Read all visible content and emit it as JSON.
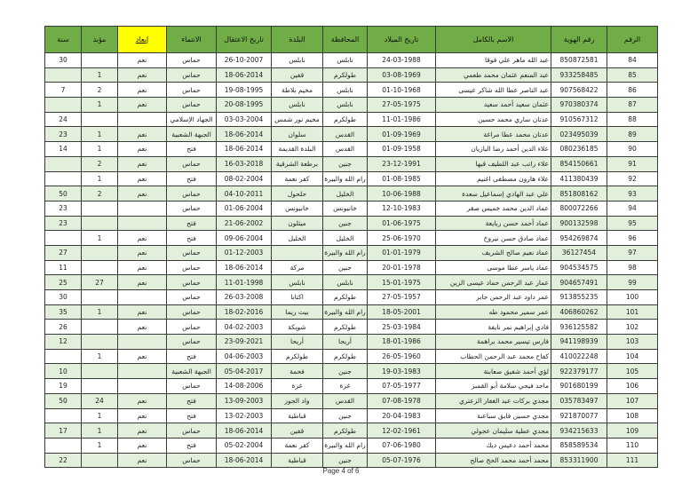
{
  "colors": {
    "header": "#70ad47",
    "highlight": "#ffff00",
    "alt_row": "#e2efda"
  },
  "headers": [
    "الرقم",
    "رقم الهوية",
    "الاسم بالكامل",
    "تاريخ الميلاد",
    "المحافظة",
    "البلدة",
    "تاريخ الاعتقال",
    "الانتماء",
    "إبعاد",
    "مؤبد",
    "سنة"
  ],
  "rows": [
    [
      "84",
      "850872581",
      "عبد الله ماهر علي قوقا",
      "24-03-1988",
      "نابلس",
      "نابلس",
      "26-10-2007",
      "حماس",
      "نعم",
      "",
      "30"
    ],
    [
      "85",
      "933258485",
      "عبد المنعم عثمان محمد طعمي",
      "03-08-1969",
      "طولكرم",
      "قفين",
      "18-06-2014",
      "حماس",
      "نعم",
      "1",
      ""
    ],
    [
      "86",
      "907568422",
      "عبد الناصر عطا الله شاكر عيسى",
      "01-10-1968",
      "نابلس",
      "مخيم بلاطة",
      "19-08-1995",
      "حماس",
      "نعم",
      "2",
      "7"
    ],
    [
      "87",
      "970380374",
      "عثمان سعيد أحمد سعيد",
      "27-05-1975",
      "نابلس",
      "نابلس",
      "20-08-1995",
      "حماس",
      "نعم",
      "1",
      ""
    ],
    [
      "88",
      "910567312",
      "عدنان ساري محمد حسين",
      "11-01-1986",
      "طولكرم",
      "مخيم نور شمس",
      "03-03-2004",
      "الجهاد الإسلامي",
      "",
      "",
      "24"
    ],
    [
      "89",
      "023495039",
      "عدنان محمد عطا مراغة",
      "01-09-1969",
      "القدس",
      "سلوان",
      "18-06-2014",
      "الجبهة الشعبية",
      "نعم",
      "1",
      "23"
    ],
    [
      "90",
      "080236185",
      "علاء الدين أحمد رضا البازيان",
      "01-09-1958",
      "القدس",
      "البلدة القديمة",
      "18-06-2014",
      "فتح",
      "نعم",
      "1",
      "14"
    ],
    [
      "91",
      "854150661",
      "علاء راتب عبد اللطيف قبها",
      "23-12-1991",
      "جنين",
      "برطعة الشرقية",
      "16-03-2018",
      "حماس",
      "نعم",
      "2",
      ""
    ],
    [
      "92",
      "411380439",
      "علاء هارون مصطفى اغنيم",
      "01-08-1985",
      "رام الله والبيرة",
      "كفر نعمة",
      "08-02-2004",
      "فتح",
      "نعم",
      "1",
      ""
    ],
    [
      "93",
      "851808162",
      "علي عبد الهادي إسماعيل سعدة",
      "10-06-1988",
      "الخليل",
      "حلحول",
      "04-10-2011",
      "حماس",
      "نعم",
      "2",
      "50"
    ],
    [
      "94",
      "800072266",
      "عماد الدين محمد خميس صقر",
      "12-10-1983",
      "خانيونس",
      "خانيونس",
      "01-06-2004",
      "حماس",
      "",
      "",
      "23"
    ],
    [
      "95",
      "900132598",
      "عماد أحمد حسن ربايعة",
      "01-06-1975",
      "جنين",
      "ميثلون",
      "21-06-2002",
      "فتح",
      "",
      "",
      "23"
    ],
    [
      "96",
      "954269874",
      "عماد صادق حسن نيروخ",
      "25-06-1970",
      "الخليل",
      "الخليل",
      "09-06-2004",
      "فتح",
      "نعم",
      "1",
      ""
    ],
    [
      "97",
      "36127454",
      "عماد نعيم صالح الشريف",
      "01-01-1979",
      "رام الله والبيرة",
      "",
      "01-12-2003",
      "حماس",
      "نعم",
      "",
      "27"
    ],
    [
      "98",
      "904534575",
      "عماد ياسر عطا موسى",
      "20-01-1978",
      "جنين",
      "مركة",
      "18-06-2014",
      "حماس",
      "نعم",
      "",
      "11"
    ],
    [
      "99",
      "904657491",
      "عمار عبد الرحمن حماد عيسى الزين",
      "15-01-1975",
      "نابلس",
      "نابلس",
      "11-01-1998",
      "حماس",
      "نعم",
      "27",
      "25"
    ],
    [
      "100",
      "913855235",
      "عمر داود عبد الرحمن جابر",
      "27-05-1957",
      "طولكرم",
      "اكتابا",
      "26-03-2008",
      "حماس",
      "",
      "",
      "30"
    ],
    [
      "101",
      "406860262",
      "عمر سمير محمود طه",
      "18-05-2001",
      "رام الله والبيرة",
      "بيت ريما",
      "18-02-2016",
      "حماس",
      "نعم",
      "1",
      "35"
    ],
    [
      "102",
      "936125582",
      "فادي إبراهيم نمر نايفة",
      "25-03-1984",
      "طولكرم",
      "شويكة",
      "04-02-2003",
      "حماس",
      "نعم",
      "",
      "26"
    ],
    [
      "103",
      "941198939",
      "فارس تيسير محمد براهمة",
      "18-01-1986",
      "أريحا",
      "أريحا",
      "23-09-2021",
      "حماس",
      "",
      "",
      "12"
    ],
    [
      "104",
      "410022248",
      "كفاح محمد عبد الرحمن الحطاب",
      "26-05-1960",
      "طولكرم",
      "طولكرم",
      "04-06-2003",
      "فتح",
      "نعم",
      "1",
      ""
    ],
    [
      "105",
      "922379177",
      "لؤي أحمد شفيق صعابنة",
      "19-03-1983",
      "جنين",
      "فحمة",
      "05-04-2017",
      "الجبهة الشعبية",
      "",
      "",
      "10"
    ],
    [
      "106",
      "901680199",
      "ماجد فيحي سلامة أبو القمبز",
      "07-05-1977",
      "غزة",
      "غزة",
      "14-08-2006",
      "حماس",
      "",
      "",
      "19"
    ],
    [
      "107",
      "035783497",
      "مجدي بركات عبد الغفار الزعتري",
      "07-08-1978",
      "القدس",
      "واد الجوز",
      "13-09-2003",
      "فتح",
      "نعم",
      "24",
      "50"
    ],
    [
      "108",
      "921870077",
      "مجدي حسين فايق سباعنة",
      "20-04-1983",
      "جنين",
      "قباطية",
      "13-02-2003",
      "فتح",
      "نعم",
      "1",
      ""
    ],
    [
      "109",
      "934215633",
      "مجدي عطية سليمان عجولي",
      "12-02-1961",
      "طولكرم",
      "قفين",
      "18-06-2014",
      "حماس",
      "نعم",
      "1",
      "17"
    ],
    [
      "110",
      "858589534",
      "محمد أحمد دعيس ديك",
      "07-06-1980",
      "رام الله والبيرة",
      "كفر نعمة",
      "05-02-2004",
      "فتح",
      "نعم",
      "1",
      ""
    ],
    [
      "111",
      "853311900",
      "محمد أحمد محمد الحج صالح",
      "05-07-1976",
      "جنين",
      "قباطية",
      "18-06-2014",
      "حماس",
      "نعم",
      "",
      "22"
    ]
  ],
  "footer": "Page 4 of 6"
}
